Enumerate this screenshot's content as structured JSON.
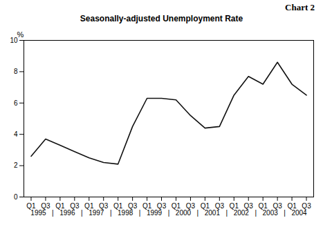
{
  "chart_data": {
    "type": "line",
    "title": "Seasonally-adjusted Unemployment Rate",
    "chart_label": "Chart 2",
    "ylabel": "%",
    "categories": [
      "Q1",
      "Q3",
      "Q1",
      "Q3",
      "Q1",
      "Q3",
      "Q1",
      "Q3",
      "Q1",
      "Q3",
      "Q1",
      "Q3",
      "Q1",
      "Q3",
      "Q1",
      "Q3",
      "Q1",
      "Q3",
      "Q1",
      "Q3"
    ],
    "values": [
      2.6,
      3.7,
      3.3,
      2.9,
      2.5,
      2.2,
      2.1,
      4.5,
      6.3,
      6.3,
      6.2,
      5.2,
      4.4,
      4.5,
      6.5,
      7.7,
      7.2,
      8.6,
      7.2,
      6.5
    ],
    "color": "#111111",
    "x_groups": [
      {
        "label": "1995",
        "start": 0,
        "end": 1
      },
      {
        "label": "1996",
        "start": 2,
        "end": 3
      },
      {
        "label": "1997",
        "start": 4,
        "end": 5
      },
      {
        "label": "1998",
        "start": 6,
        "end": 7
      },
      {
        "label": "1999",
        "start": 8,
        "end": 9
      },
      {
        "label": "2000",
        "start": 10,
        "end": 11
      },
      {
        "label": "2001",
        "start": 12,
        "end": 13
      },
      {
        "label": "2002",
        "start": 14,
        "end": 15
      },
      {
        "label": "2003",
        "start": 16,
        "end": 17
      },
      {
        "label": "2004",
        "start": 18,
        "end": 19
      }
    ],
    "group_separator": "|",
    "ylim": [
      0,
      10
    ],
    "yticks": [
      0,
      2,
      4,
      6,
      8,
      10
    ],
    "grid": false
  }
}
